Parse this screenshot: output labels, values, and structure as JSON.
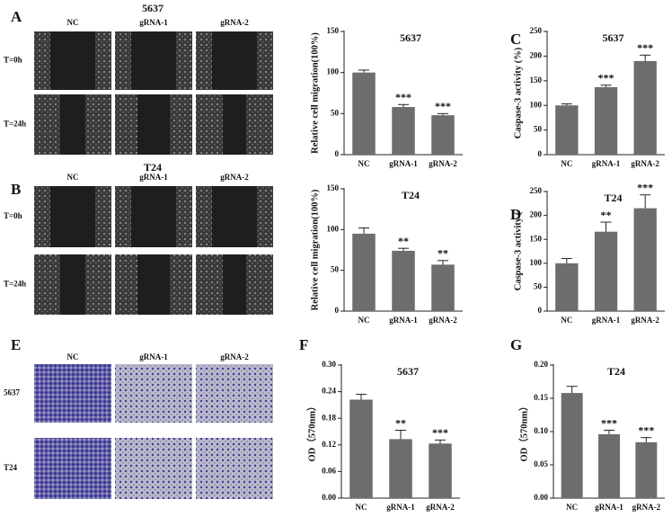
{
  "chart_data": [
    {
      "type": "bar",
      "title": "5637",
      "y_label": "Relative cell migration(100%)",
      "categories": [
        "NC",
        "gRNA-1",
        "gRNA-2"
      ],
      "values": [
        100,
        58,
        48
      ],
      "errors": [
        3,
        3,
        2
      ],
      "significance": [
        null,
        "***",
        "***"
      ],
      "color": "#6d6d6d",
      "ylim": [
        0,
        150
      ],
      "yticks": [
        0,
        50,
        100,
        150
      ]
    },
    {
      "type": "bar",
      "letter": "C",
      "title": "5637",
      "y_label": "Caspase-3 activity (%)",
      "categories": [
        "NC",
        "gRNA-1",
        "gRNA-2"
      ],
      "values": [
        100,
        137,
        190
      ],
      "errors": [
        3,
        4,
        12
      ],
      "significance": [
        null,
        "***",
        "***"
      ],
      "color": "#6d6d6d",
      "ylim": [
        0,
        250
      ],
      "yticks": [
        0,
        50,
        100,
        150,
        200,
        250
      ]
    },
    {
      "type": "bar",
      "title": "T24",
      "y_label": "Relative cell migration(100%)",
      "categories": [
        "NC",
        "gRNA-1",
        "gRNA-2"
      ],
      "values": [
        95,
        74,
        57
      ],
      "errors": [
        7,
        3,
        5
      ],
      "significance": [
        null,
        "**",
        "**"
      ],
      "color": "#6d6d6d",
      "ylim": [
        0,
        150
      ],
      "yticks": [
        0,
        50,
        100,
        150
      ]
    },
    {
      "type": "bar",
      "letter": "D",
      "title": "T24",
      "y_label": "Caspase-3 activity (",
      "categories": [
        "NC",
        "gRNA-1",
        "gRNA-2"
      ],
      "values": [
        100,
        166,
        215
      ],
      "errors": [
        10,
        20,
        28
      ],
      "significance": [
        null,
        "**",
        "***"
      ],
      "color": "#6d6d6d",
      "ylim": [
        0,
        250
      ],
      "yticks": [
        0,
        50,
        100,
        150,
        200,
        250
      ]
    },
    {
      "type": "bar",
      "letter": "F",
      "title": "5637",
      "y_label": "OD（570nm）",
      "categories": [
        "NC",
        "gRNA-1",
        "gRNA-2"
      ],
      "values": [
        0.222,
        0.133,
        0.123
      ],
      "errors": [
        0.012,
        0.02,
        0.008
      ],
      "significance": [
        null,
        "**",
        "***"
      ],
      "color": "#6d6d6d",
      "ylim": [
        0,
        0.3
      ],
      "yticks": [
        {
          "value": 0,
          "label": "0.00"
        },
        {
          "value": 0.06,
          "label": "0.06"
        },
        {
          "value": 0.12,
          "label": "0.12"
        },
        {
          "value": 0.18,
          "label": "0.18"
        },
        {
          "value": 0.24,
          "label": "0.24"
        },
        {
          "value": 0.3,
          "label": "0.30"
        }
      ]
    },
    {
      "type": "bar",
      "letter": "G",
      "title": "T24",
      "y_label": "OD（570nm）",
      "categories": [
        "NC",
        "gRNA-1",
        "gRNA-2"
      ],
      "values": [
        0.158,
        0.096,
        0.084
      ],
      "errors": [
        0.01,
        0.006,
        0.007
      ],
      "significance": [
        null,
        "***",
        "***"
      ],
      "color": "#6d6d6d",
      "ylim": [
        0,
        0.2
      ],
      "yticks": [
        {
          "value": 0,
          "label": "0.00"
        },
        {
          "value": 0.05,
          "label": "0.05"
        },
        {
          "value": 0.1,
          "label": "0.10"
        },
        {
          "value": 0.15,
          "label": "0.15"
        },
        {
          "value": 0.2,
          "label": "0.20"
        }
      ]
    }
  ],
  "image_panels": [
    {
      "letter": "A",
      "title": "5637",
      "kind": "wound",
      "columns": [
        "NC",
        "gRNA-1",
        "gRNA-2"
      ],
      "rows": [
        "T=0h",
        "T=24h"
      ]
    },
    {
      "letter": "B",
      "title": "T24",
      "kind": "wound",
      "columns": [
        "NC",
        "gRNA-1",
        "gRNA-2"
      ],
      "rows": [
        "T=0h",
        "T=24h"
      ]
    },
    {
      "letter": "E",
      "kind": "transwell",
      "columns": [
        "NC",
        "gRNA-1",
        "gRNA-2"
      ],
      "rows": [
        "5637",
        "T24"
      ]
    }
  ]
}
